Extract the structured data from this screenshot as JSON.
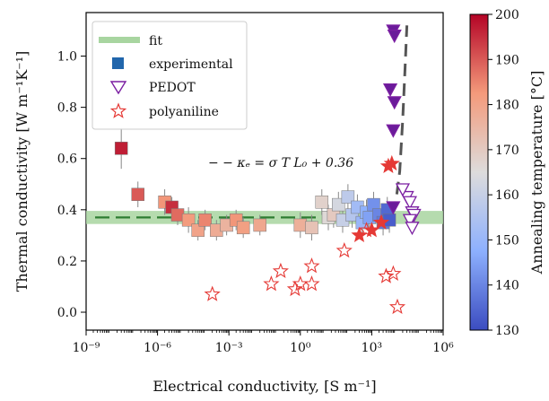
{
  "chart_data": {
    "type": "scatter",
    "xlabel": "Electrical conductivity, [S m⁻¹]",
    "ylabel": "Thermal conductivity [W m⁻¹K⁻¹]",
    "x_scale": "log",
    "xlim": [
      1e-09,
      1000000.0
    ],
    "ylim": [
      -0.07,
      1.17
    ],
    "x_ticks": [
      1e-09,
      1e-06,
      0.001,
      1,
      1000.0,
      1000000.0
    ],
    "x_tick_labels": [
      "10⁻⁹",
      "10⁻⁶",
      "10⁻³",
      "10⁰",
      "10³",
      "10⁶"
    ],
    "y_ticks": [
      0.0,
      0.2,
      0.4,
      0.6,
      0.8,
      1.0
    ],
    "y_tick_labels": [
      "0.0",
      "0.2",
      "0.4",
      "0.6",
      "0.8",
      "1.0"
    ],
    "annotation": "− − κₑ = σ T L₀ + 0.36",
    "legend": [
      {
        "label": "fit",
        "marker": "band"
      },
      {
        "label": "experimental",
        "marker": "square"
      },
      {
        "label": "PEDOT",
        "marker": "triangle-down-open"
      },
      {
        "label": "polyaniline",
        "marker": "star-open"
      }
    ],
    "legend_position": "top-left",
    "colorbar": {
      "label": "Annealing temperature [°C]",
      "range": [
        130,
        200
      ],
      "ticks": [
        130,
        140,
        150,
        160,
        170,
        180,
        190,
        200
      ],
      "colormap": "coolwarm"
    },
    "fit": {
      "y": 0.37,
      "band": [
        0.355,
        0.385
      ]
    },
    "model_curve": {
      "x": [
        1,
        10,
        100,
        1000,
        3000,
        6000,
        10000,
        15000,
        20000,
        25000,
        30000
      ],
      "y": [
        0.36,
        0.36,
        0.36,
        0.362,
        0.37,
        0.39,
        0.42,
        0.55,
        0.75,
        0.95,
        1.12
      ]
    },
    "series": [
      {
        "name": "experimental",
        "marker": "square",
        "points": [
          {
            "x": 3e-08,
            "y": 0.64,
            "err": 0.08,
            "t": 197
          },
          {
            "x": 1.5e-07,
            "y": 0.46,
            "err": 0.05,
            "t": 190
          },
          {
            "x": 2e-06,
            "y": 0.43,
            "err": 0.05,
            "t": 183
          },
          {
            "x": 4e-06,
            "y": 0.41,
            "err": 0.04,
            "t": 195
          },
          {
            "x": 7e-06,
            "y": 0.38,
            "err": 0.04,
            "t": 188
          },
          {
            "x": 2e-05,
            "y": 0.36,
            "err": 0.05,
            "t": 182
          },
          {
            "x": 5e-05,
            "y": 0.32,
            "err": 0.04,
            "t": 180
          },
          {
            "x": 0.0001,
            "y": 0.36,
            "err": 0.04,
            "t": 185
          },
          {
            "x": 0.0003,
            "y": 0.32,
            "err": 0.04,
            "t": 178
          },
          {
            "x": 0.0008,
            "y": 0.34,
            "err": 0.04,
            "t": 176
          },
          {
            "x": 0.002,
            "y": 0.36,
            "err": 0.04,
            "t": 183
          },
          {
            "x": 0.004,
            "y": 0.33,
            "err": 0.04,
            "t": 181
          },
          {
            "x": 0.02,
            "y": 0.34,
            "err": 0.04,
            "t": 179
          },
          {
            "x": 1.0,
            "y": 0.34,
            "err": 0.05,
            "t": 177
          },
          {
            "x": 3.0,
            "y": 0.33,
            "err": 0.05,
            "t": 172
          },
          {
            "x": 8.0,
            "y": 0.43,
            "err": 0.05,
            "t": 168
          },
          {
            "x": 15.0,
            "y": 0.37,
            "err": 0.05,
            "t": 166
          },
          {
            "x": 25.0,
            "y": 0.38,
            "err": 0.05,
            "t": 170
          },
          {
            "x": 40.0,
            "y": 0.42,
            "err": 0.05,
            "t": 163
          },
          {
            "x": 60.0,
            "y": 0.36,
            "err": 0.05,
            "t": 160
          },
          {
            "x": 100.0,
            "y": 0.45,
            "err": 0.05,
            "t": 158
          },
          {
            "x": 150.0,
            "y": 0.38,
            "err": 0.05,
            "t": 156
          },
          {
            "x": 250.0,
            "y": 0.41,
            "err": 0.05,
            "t": 152
          },
          {
            "x": 400.0,
            "y": 0.35,
            "err": 0.05,
            "t": 150
          },
          {
            "x": 600.0,
            "y": 0.39,
            "err": 0.05,
            "t": 148
          },
          {
            "x": 800.0,
            "y": 0.37,
            "err": 0.05,
            "t": 145
          },
          {
            "x": 1200.0,
            "y": 0.42,
            "err": 0.05,
            "t": 142
          },
          {
            "x": 2000.0,
            "y": 0.38,
            "err": 0.05,
            "t": 140
          },
          {
            "x": 3000.0,
            "y": 0.35,
            "err": 0.05,
            "t": 138
          },
          {
            "x": 4500.0,
            "y": 0.4,
            "err": 0.05,
            "t": 135
          },
          {
            "x": 5500.0,
            "y": 0.36,
            "err": 0.05,
            "t": 133
          }
        ]
      },
      {
        "name": "PEDOT",
        "marker": "triangle-down",
        "points": [
          {
            "x": 8000.0,
            "y": 1.1,
            "filled": true
          },
          {
            "x": 9000.0,
            "y": 1.08,
            "filled": true
          },
          {
            "x": 6000.0,
            "y": 0.87,
            "filled": true
          },
          {
            "x": 9000.0,
            "y": 0.82,
            "filled": true
          },
          {
            "x": 8000.0,
            "y": 0.71,
            "filled": true
          },
          {
            "x": 8000.0,
            "y": 0.41,
            "filled": true
          },
          {
            "x": 30000.0,
            "y": 0.45,
            "filled": false
          },
          {
            "x": 40000.0,
            "y": 0.43,
            "filled": false
          },
          {
            "x": 50000.0,
            "y": 0.39,
            "filled": false
          },
          {
            "x": 60000.0,
            "y": 0.38,
            "filled": false
          },
          {
            "x": 40000.0,
            "y": 0.36,
            "filled": false
          },
          {
            "x": 50000.0,
            "y": 0.33,
            "filled": false
          },
          {
            "x": 20000.0,
            "y": 0.48,
            "filled": false
          }
        ]
      },
      {
        "name": "polyaniline",
        "marker": "star",
        "points": [
          {
            "x": 0.0002,
            "y": 0.07,
            "filled": false
          },
          {
            "x": 0.06,
            "y": 0.11,
            "filled": false
          },
          {
            "x": 0.15,
            "y": 0.16,
            "filled": false
          },
          {
            "x": 0.6,
            "y": 0.09,
            "filled": false
          },
          {
            "x": 1.0,
            "y": 0.11,
            "filled": false
          },
          {
            "x": 3.0,
            "y": 0.11,
            "filled": false
          },
          {
            "x": 3.0,
            "y": 0.18,
            "filled": false
          },
          {
            "x": 70.0,
            "y": 0.24,
            "filled": false
          },
          {
            "x": 600.0,
            "y": 0.32,
            "filled": false
          },
          {
            "x": 4000.0,
            "y": 0.14,
            "filled": false
          },
          {
            "x": 8000.0,
            "y": 0.15,
            "filled": false
          },
          {
            "x": 12000.0,
            "y": 0.02,
            "filled": false
          },
          {
            "x": 300.0,
            "y": 0.3,
            "filled": true
          },
          {
            "x": 1000.0,
            "y": 0.32,
            "filled": true
          },
          {
            "x": 2500.0,
            "y": 0.35,
            "filled": true
          },
          {
            "x": 5000.0,
            "y": 0.57,
            "filled": true
          },
          {
            "x": 7000.0,
            "y": 0.58,
            "filled": true
          }
        ]
      }
    ]
  }
}
